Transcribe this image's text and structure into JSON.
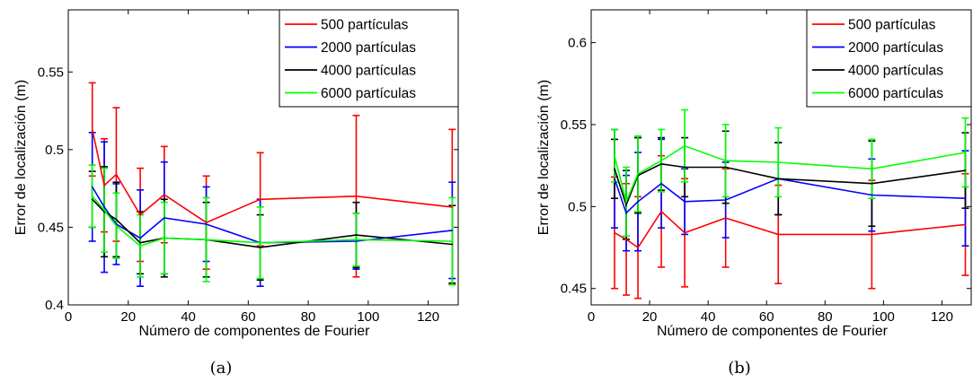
{
  "chart_data": [
    {
      "type": "line",
      "caption": "(a)",
      "xlabel": "Número de componentes de Fourier",
      "ylabel": "Error de localización (m)",
      "xlim": [
        0,
        130
      ],
      "ylim": [
        0.4,
        0.59
      ],
      "xticks": [
        0,
        20,
        40,
        60,
        80,
        100,
        120
      ],
      "yticks": [
        0.4,
        0.45,
        0.5,
        0.55
      ],
      "ytick_labels": [
        "0.4",
        "0.45",
        "0.5",
        "0.55"
      ],
      "legend_position": "top-right",
      "x": [
        8,
        12,
        16,
        24,
        32,
        46,
        64,
        96,
        128
      ],
      "series": [
        {
          "name": "500 partículas",
          "color": "#ff0000",
          "values": [
            0.513,
            0.477,
            0.484,
            0.458,
            0.471,
            0.453,
            0.468,
            0.47,
            0.463
          ],
          "errors": [
            0.03,
            0.03,
            0.043,
            0.03,
            0.031,
            0.03,
            0.03,
            0.052,
            0.05
          ]
        },
        {
          "name": "2000 partículas",
          "color": "#0000ff",
          "values": [
            0.476,
            0.463,
            0.452,
            0.443,
            0.456,
            0.452,
            0.44,
            0.441,
            0.448
          ],
          "errors": [
            0.035,
            0.042,
            0.026,
            0.031,
            0.036,
            0.024,
            0.028,
            0.018,
            0.031
          ]
        },
        {
          "name": "4000 partículas",
          "color": "#000000",
          "values": [
            0.468,
            0.46,
            0.455,
            0.44,
            0.443,
            0.442,
            0.437,
            0.445,
            0.439
          ],
          "errors": [
            0.018,
            0.029,
            0.024,
            0.02,
            0.025,
            0.024,
            0.021,
            0.021,
            0.025
          ]
        },
        {
          "name": "6000 partículas",
          "color": "#00ff00",
          "values": [
            0.47,
            0.461,
            0.451,
            0.438,
            0.443,
            0.442,
            0.44,
            0.442,
            0.441
          ],
          "errors": [
            0.02,
            0.027,
            0.021,
            0.02,
            0.023,
            0.027,
            0.023,
            0.017,
            0.028
          ]
        }
      ]
    },
    {
      "type": "line",
      "caption": "(b)",
      "xlabel": "Número de componentes de Fourier",
      "ylabel": "Error de localización (m)",
      "xlim": [
        0,
        130
      ],
      "ylim": [
        0.44,
        0.62
      ],
      "xticks": [
        0,
        20,
        40,
        60,
        80,
        100,
        120
      ],
      "yticks": [
        0.45,
        0.5,
        0.55,
        0.6
      ],
      "ytick_labels": [
        "0.45",
        "0.5",
        "0.55",
        "0.6"
      ],
      "legend_position": "top-right",
      "x": [
        8,
        12,
        16,
        24,
        32,
        46,
        64,
        96,
        128
      ],
      "series": [
        {
          "name": "500 partículas",
          "color": "#ff0000",
          "values": [
            0.484,
            0.48,
            0.475,
            0.497,
            0.484,
            0.493,
            0.483,
            0.483,
            0.489
          ],
          "errors": [
            0.034,
            0.034,
            0.031,
            0.034,
            0.033,
            0.03,
            0.03,
            0.033,
            0.031
          ]
        },
        {
          "name": "2000 partículas",
          "color": "#0000ff",
          "values": [
            0.517,
            0.496,
            0.503,
            0.514,
            0.503,
            0.504,
            0.517,
            0.507,
            0.505
          ],
          "errors": [
            0.03,
            0.023,
            0.03,
            0.027,
            0.02,
            0.023,
            0.022,
            0.022,
            0.029
          ]
        },
        {
          "name": "4000 partículas",
          "color": "#000000",
          "values": [
            0.523,
            0.501,
            0.519,
            0.526,
            0.524,
            0.524,
            0.517,
            0.514,
            0.522
          ],
          "errors": [
            0.018,
            0.021,
            0.023,
            0.016,
            0.018,
            0.022,
            0.022,
            0.026,
            0.023
          ]
        },
        {
          "name": "6000 partículas",
          "color": "#00ff00",
          "values": [
            0.531,
            0.503,
            0.52,
            0.528,
            0.537,
            0.528,
            0.527,
            0.523,
            0.533
          ],
          "errors": [
            0.016,
            0.021,
            0.023,
            0.019,
            0.022,
            0.022,
            0.021,
            0.018,
            0.021
          ]
        }
      ]
    }
  ]
}
